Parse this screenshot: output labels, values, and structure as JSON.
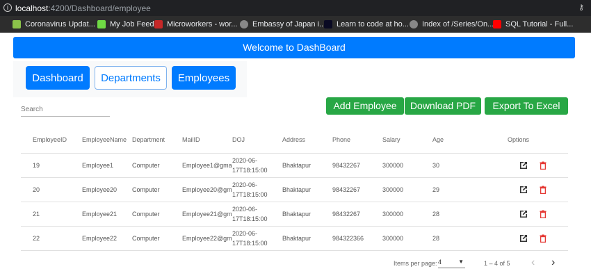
{
  "browser": {
    "url_host": "localhost",
    "url_path": ":4200/Dashboard/employee",
    "bookmarks": [
      {
        "label": "Coronavirus Updat...",
        "icon": "coronavirus-icon",
        "color": "#8bc34a"
      },
      {
        "label": "My Job Feed",
        "icon": "upwork-icon",
        "color": "#6fda44"
      },
      {
        "label": "Microworkers - wor...",
        "icon": "microworkers-icon",
        "color": "#c62828"
      },
      {
        "label": "Embassy of Japan i...",
        "icon": "globe-icon",
        "color": "#888888"
      },
      {
        "label": "Learn to code at ho...",
        "icon": "freecodecamp-icon",
        "color": "#0a0a23"
      },
      {
        "label": "Index of /Series/On...",
        "icon": "globe-icon",
        "color": "#888888"
      },
      {
        "label": "SQL Tutorial - Full...",
        "icon": "youtube-icon",
        "color": "#ff0000"
      }
    ]
  },
  "banner": {
    "title": "Welcome to DashBoard"
  },
  "nav": {
    "dashboard": "Dashboard",
    "departments": "Departments",
    "employees": "Employees"
  },
  "search": {
    "placeholder": "Search"
  },
  "actions": {
    "add": "Add Employee",
    "pdf": "Download PDF",
    "excel": "Export To Excel"
  },
  "table": {
    "headers": [
      "EmployeeID",
      "EmployeeName",
      "Department",
      "MailID",
      "DOJ",
      "Address",
      "Phone",
      "Salary",
      "Age",
      "Options"
    ],
    "rows": [
      [
        "19",
        "Employee1",
        "Computer",
        "Employee1@gmail",
        "2020-06-17T18:15:00",
        "Bhaktapur",
        "98432267",
        "300000",
        "30"
      ],
      [
        "20",
        "Employee20",
        "Computer",
        "Employee20@gma",
        "2020-06-17T18:15:00",
        "Bhaktapur",
        "98432267",
        "300000",
        "29"
      ],
      [
        "21",
        "Employee21",
        "Computer",
        "Employee21@gma",
        "2020-06-17T18:15:00",
        "Bhaktapur",
        "98432267",
        "300000",
        "28"
      ],
      [
        "22",
        "Employee22",
        "Computer",
        "Employee22@gma",
        "2020-06-17T18:15:00",
        "Bhaktapur",
        "984322366",
        "300000",
        "28"
      ]
    ]
  },
  "paginator": {
    "items_label": "Items per page:",
    "page_size": "4",
    "range": "1 – 4 of 5"
  },
  "colors": {
    "primary": "#007bff",
    "success": "#28a745",
    "danger": "#e53935"
  }
}
